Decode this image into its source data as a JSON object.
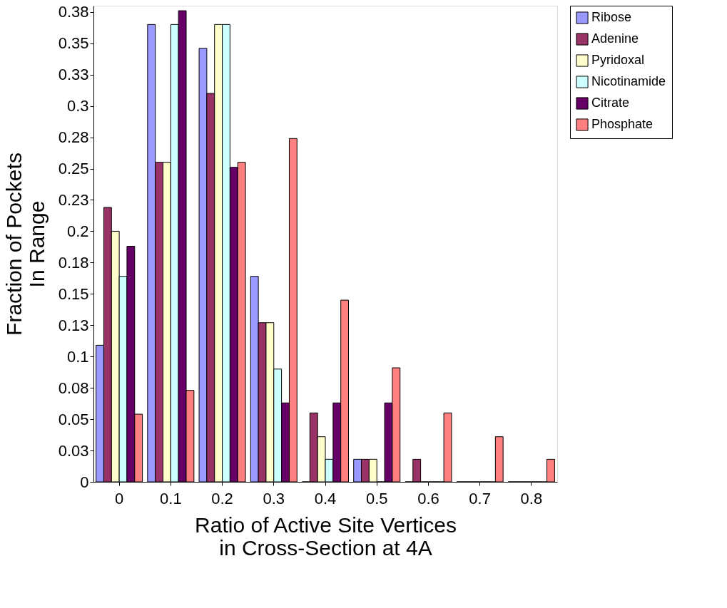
{
  "chart_data": {
    "type": "bar",
    "xlabel": "Ratio of Active Site Vertices\nin Cross-Section at 4A",
    "ylabel": "Fraction of Pockets\nIn Range",
    "categories": [
      "0",
      "0.1",
      "0.2",
      "0.3",
      "0.4",
      "0.5",
      "0.6",
      "0.7",
      "0.8"
    ],
    "series": [
      {
        "name": "Ribose",
        "color": "#9999ff",
        "values": [
          0.109,
          0.365,
          0.346,
          0.164,
          0,
          0.018,
          0,
          0,
          0
        ]
      },
      {
        "name": "Adenine",
        "color": "#993366",
        "values": [
          0.219,
          0.255,
          0.31,
          0.127,
          0.055,
          0.018,
          0.018,
          0,
          0
        ]
      },
      {
        "name": "Pyridoxal",
        "color": "#ffffcc",
        "values": [
          0.2,
          0.255,
          0.365,
          0.127,
          0.036,
          0.018,
          0,
          0,
          0
        ]
      },
      {
        "name": "Nicotinamide",
        "color": "#ccffff",
        "values": [
          0.164,
          0.365,
          0.365,
          0.09,
          0.018,
          0,
          0,
          0,
          0
        ]
      },
      {
        "name": "Citrate",
        "color": "#660066",
        "values": [
          0.188,
          0.376,
          0.251,
          0.063,
          0.063,
          0.063,
          0,
          0,
          0
        ]
      },
      {
        "name": "Phosphate",
        "color": "#ff8080",
        "values": [
          0.054,
          0.073,
          0.255,
          0.274,
          0.145,
          0.091,
          0.055,
          0.036,
          0.018
        ]
      }
    ],
    "ylim": [
      0,
      0.38
    ],
    "yticks": [
      0,
      {
        "value": 0.025,
        "label": "0.03"
      },
      0.05,
      {
        "value": 0.075,
        "label": "0.08"
      },
      0.1,
      {
        "value": 0.125,
        "label": "0.13"
      },
      0.15,
      {
        "value": 0.175,
        "label": "0.18"
      },
      0.2,
      {
        "value": 0.225,
        "label": "0.23"
      },
      0.25,
      {
        "value": 0.275,
        "label": "0.28"
      },
      0.3,
      {
        "value": 0.325,
        "label": "0.33"
      },
      0.35,
      {
        "value": 0.375,
        "label": "0.38"
      }
    ],
    "grid": false,
    "legend": "right"
  }
}
